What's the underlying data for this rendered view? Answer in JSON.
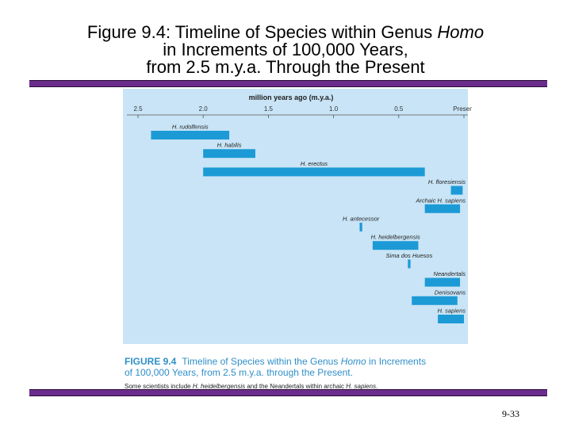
{
  "slide": {
    "title_line1_prefix": "Figure 9.4: Timeline of Species within Genus ",
    "title_line1_italic": "Homo",
    "title_line2": "in Increments of 100,000 Years,",
    "title_line3": "from 2.5 m.y.a. Through the Present",
    "page_number": "9-33"
  },
  "colors": {
    "panel": "#c8e4f6",
    "bar": "#1c9ad6",
    "rule": "#6a2d8c",
    "caption_title": "#2f8fc8"
  },
  "chart_data": {
    "type": "bar",
    "orientation": "horizontal",
    "axis_title": "million years ago (m.y.a.)",
    "xlim": [
      2.5,
      0.0
    ],
    "ticks": [
      {
        "value": 2.5,
        "label": "2.5"
      },
      {
        "value": 2.0,
        "label": "2.0"
      },
      {
        "value": 1.5,
        "label": "1.5"
      },
      {
        "value": 1.0,
        "label": "1.0"
      },
      {
        "value": 0.5,
        "label": "0.5"
      },
      {
        "value": 0.0,
        "label": "Present"
      }
    ],
    "series": [
      {
        "label": "H. rudolfensis",
        "start": 2.4,
        "end": 1.8
      },
      {
        "label": "H. habilis",
        "start": 2.0,
        "end": 1.6
      },
      {
        "label": "H. erectus",
        "start": 2.0,
        "end": 0.3
      },
      {
        "label": "H. floresiensis",
        "start": 0.1,
        "end": 0.01
      },
      {
        "label": "Archaic H. sapiens",
        "start": 0.3,
        "end": 0.03
      },
      {
        "label": "H. antecessor",
        "start": 0.8,
        "end": 0.78
      },
      {
        "label": "H. heidelbergensis",
        "start": 0.7,
        "end": 0.35
      },
      {
        "label": "Sima dos Huesos",
        "start": 0.43,
        "end": 0.41
      },
      {
        "label": "Neandertals",
        "start": 0.3,
        "end": 0.03
      },
      {
        "label": "Denisovans",
        "start": 0.4,
        "end": 0.05
      },
      {
        "label": "H. sapiens",
        "start": 0.2,
        "end": 0.0
      }
    ],
    "caption": {
      "figure_label": "FIGURE 9.4",
      "text_line1_a": "Timeline of Species within the Genus ",
      "text_line1_italic": "Homo",
      "text_line1_b": " in Increments",
      "text_line2": "of 100,000 Years, from 2.5 m.y.a. through the Present.",
      "note_a": "Some scientists include ",
      "note_italic1": "H. heidelbergensis",
      "note_b": " and the Neandertals within archaic ",
      "note_italic2": "H. sapiens",
      "note_c": "."
    }
  }
}
